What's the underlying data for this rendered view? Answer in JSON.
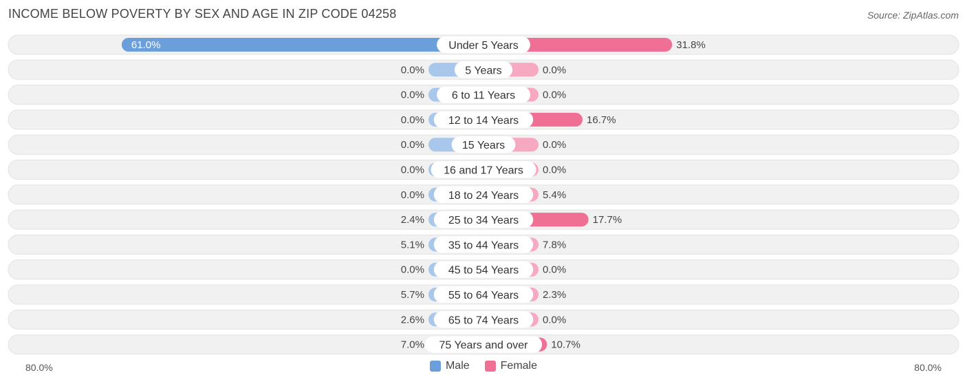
{
  "title": "INCOME BELOW POVERTY BY SEX AND AGE IN ZIP CODE 04258",
  "source": "Source: ZipAtlas.com",
  "colors": {
    "male_strong": "#6a9fdb",
    "male_light": "#a9c7ea",
    "female_strong": "#f07095",
    "female_light": "#f6a9c0",
    "row_bg": "#f1f1f1"
  },
  "legend": {
    "male": "Male",
    "female": "Female"
  },
  "axis": {
    "left_label": "80.0%",
    "right_label": "80.0%"
  },
  "chart_data": {
    "type": "bar",
    "orientation": "horizontal-diverging",
    "title": "INCOME BELOW POVERTY BY SEX AND AGE IN ZIP CODE 04258",
    "xlim": [
      -80,
      80
    ],
    "categories": [
      "Under 5 Years",
      "5 Years",
      "6 to 11 Years",
      "12 to 14 Years",
      "15 Years",
      "16 and 17 Years",
      "18 to 24 Years",
      "25 to 34 Years",
      "35 to 44 Years",
      "45 to 54 Years",
      "55 to 64 Years",
      "65 to 74 Years",
      "75 Years and over"
    ],
    "series": [
      {
        "name": "Male",
        "values": [
          61.0,
          0.0,
          0.0,
          0.0,
          0.0,
          0.0,
          0.0,
          2.4,
          5.1,
          0.0,
          5.7,
          2.6,
          7.0
        ],
        "labels": [
          "61.0%",
          "0.0%",
          "0.0%",
          "0.0%",
          "0.0%",
          "0.0%",
          "0.0%",
          "2.4%",
          "5.1%",
          "0.0%",
          "5.7%",
          "2.6%",
          "7.0%"
        ]
      },
      {
        "name": "Female",
        "values": [
          31.8,
          0.0,
          0.0,
          16.7,
          0.0,
          0.0,
          5.4,
          17.7,
          7.8,
          0.0,
          2.3,
          0.0,
          10.7
        ],
        "labels": [
          "31.8%",
          "0.0%",
          "0.0%",
          "16.7%",
          "0.0%",
          "0.0%",
          "5.4%",
          "17.7%",
          "7.8%",
          "0.0%",
          "2.3%",
          "0.0%",
          "10.7%"
        ]
      }
    ],
    "legend_position": "bottom-center",
    "grid": false
  }
}
